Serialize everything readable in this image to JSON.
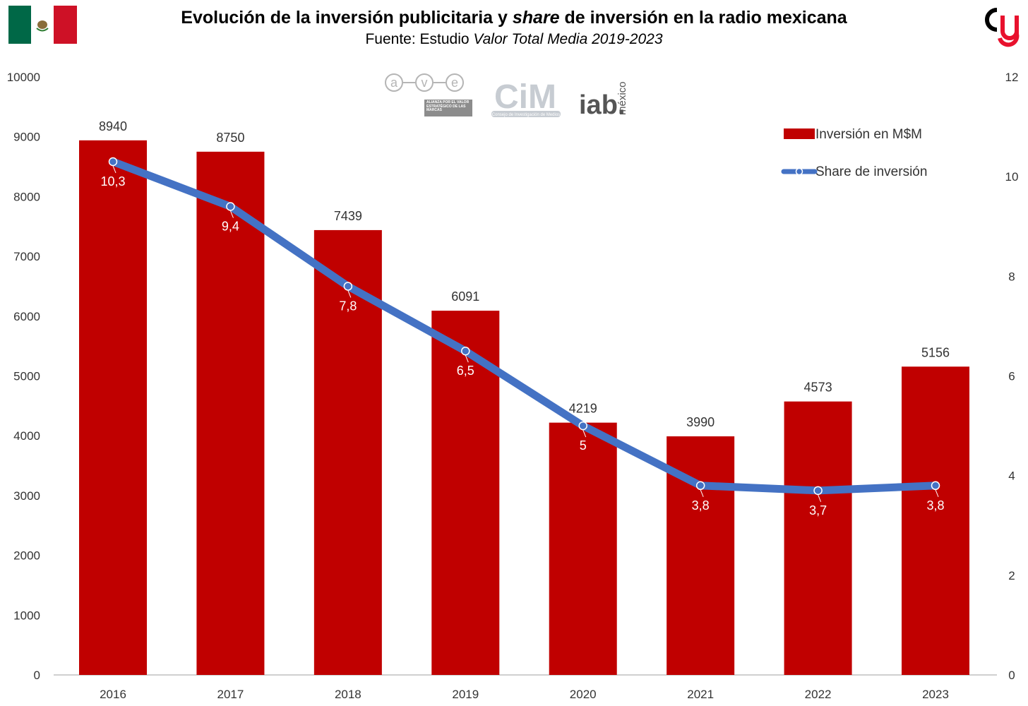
{
  "header": {
    "title_a": "Evolución de la inversión publicitaria y ",
    "title_em": "share",
    "title_b": " de inversión en la radio mexicana",
    "subtitle_a": "Fuente: Estudio ",
    "subtitle_em": "Valor Total Media 2019-2023"
  },
  "logos": {
    "ave_letters": [
      "a",
      "v",
      "e"
    ],
    "ave_caption": "ALIANZA POR EL VALOR ESTRATÉGICO DE LAS MARCAS",
    "cim_text": "CiM",
    "cim_caption": "Consejo de Investigación de Medios",
    "iab_text": "iab.",
    "iab_suffix": "méxico"
  },
  "colors": {
    "bar": "#c00000",
    "line": "#4472c4",
    "flag_green": "#006847",
    "flag_red": "#ce1126",
    "brand_red": "#e8112d"
  },
  "icons": {
    "flag": "mexico-flag-icon",
    "brand": "brand-logo-icon"
  },
  "chart_data": {
    "type": "bar",
    "categories": [
      "2016",
      "2017",
      "2018",
      "2019",
      "2020",
      "2021",
      "2022",
      "2023"
    ],
    "series": [
      {
        "name": "Inversión en M$M",
        "type": "bar",
        "axis": "left",
        "values": [
          8940,
          8750,
          7439,
          6091,
          4219,
          3990,
          4573,
          5156
        ],
        "labels": [
          "8940",
          "8750",
          "7439",
          "6091",
          "4219",
          "3990",
          "4573",
          "5156"
        ]
      },
      {
        "name": "Share de inversión",
        "type": "line",
        "axis": "right",
        "values": [
          10.3,
          9.4,
          7.8,
          6.5,
          5,
          3.8,
          3.7,
          3.8
        ],
        "labels": [
          "10,3",
          "9,4",
          "7,8",
          "6,5",
          "5",
          "3,8",
          "3,7",
          "3,8"
        ]
      }
    ],
    "title": "Evolución de la inversión publicitaria y share de inversión en la radio mexicana",
    "subtitle": "Fuente: Estudio Valor Total Media 2019-2023",
    "xlabel": "",
    "ylabel": "",
    "ylim": [
      0,
      10000
    ],
    "y_ticks": [
      "0",
      "1000",
      "2000",
      "3000",
      "4000",
      "5000",
      "6000",
      "7000",
      "8000",
      "9000",
      "10000"
    ],
    "y2lim": [
      0,
      12
    ],
    "y2_ticks": [
      "0",
      "2",
      "4",
      "6",
      "8",
      "10",
      "12"
    ],
    "grid": false,
    "legend_position": "top-right"
  }
}
